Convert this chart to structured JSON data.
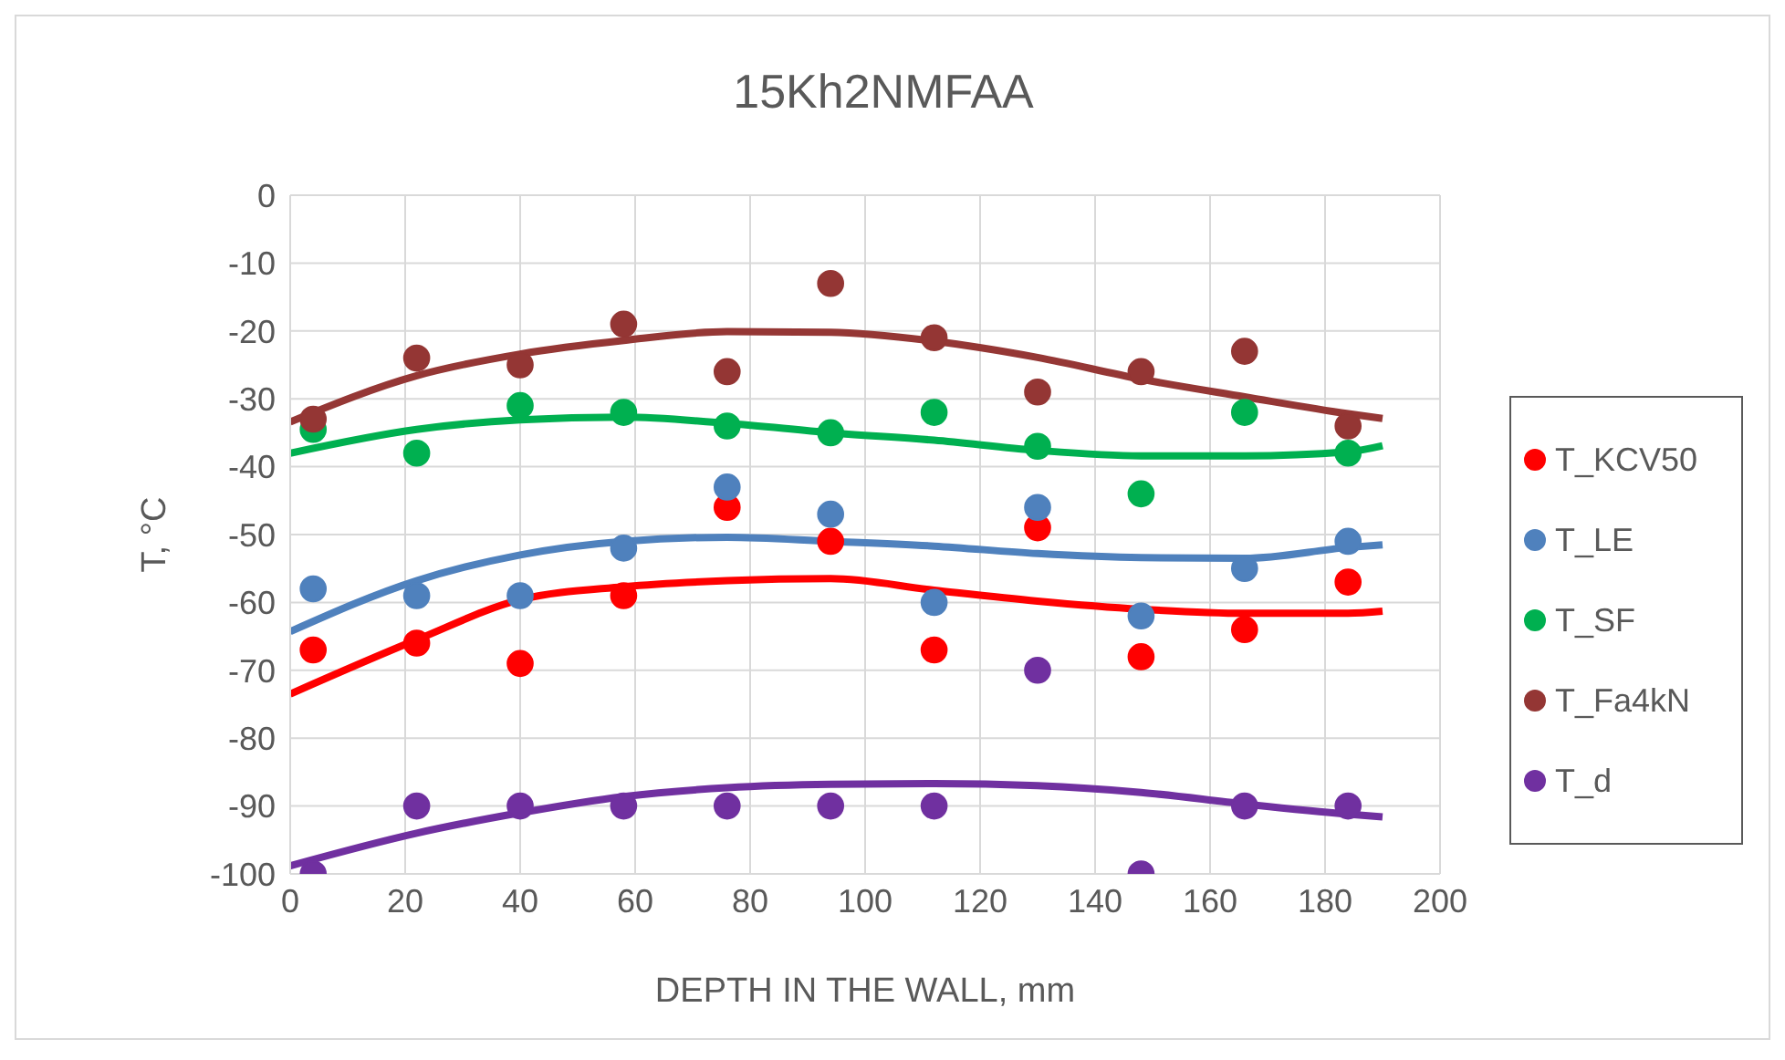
{
  "chart_data": {
    "type": "scatter",
    "title": "15Kh2NMFAA",
    "xlabel": "DEPTH IN THE WALL, mm",
    "ylabel": "T, °C",
    "xlim": [
      0,
      200
    ],
    "xticks": [
      0,
      20,
      40,
      60,
      80,
      100,
      120,
      140,
      160,
      180,
      200
    ],
    "ylim": [
      -100,
      0
    ],
    "yticks": [
      -100,
      -90,
      -80,
      -70,
      -60,
      -50,
      -40,
      -30,
      -20,
      -10,
      0
    ],
    "grid": true,
    "legend": "right",
    "marker": "circle",
    "line_style": "solid",
    "x": [
      4,
      22,
      40,
      58,
      76,
      94,
      112,
      130,
      148,
      166,
      184
    ],
    "series": [
      {
        "type": "line",
        "marker": "none",
        "color": "#ff0000",
        "x": [
          0,
          22,
          40,
          58,
          76,
          94,
          112,
          130,
          148,
          166,
          184,
          190
        ],
        "values": [
          -73.5,
          -65.5,
          -59.6,
          -57.7,
          -56.8,
          -56.5,
          -58.2,
          -59.8,
          -61,
          -61.6,
          -61.6,
          -61.3
        ]
      },
      {
        "type": "line",
        "marker": "none",
        "color": "#4f81bd",
        "x": [
          0,
          22,
          40,
          58,
          76,
          94,
          112,
          130,
          148,
          166,
          184,
          190
        ],
        "values": [
          -64.3,
          -56.8,
          -53,
          -51,
          -50.4,
          -51,
          -51.7,
          -52.8,
          -53.4,
          -53.5,
          -51.9,
          -51.5
        ]
      },
      {
        "type": "line",
        "marker": "none",
        "color": "#00b050",
        "x": [
          0,
          22,
          40,
          58,
          76,
          94,
          112,
          130,
          148,
          166,
          184,
          190
        ],
        "values": [
          -38,
          -34.5,
          -33.1,
          -32.7,
          -33.6,
          -35,
          -36.1,
          -37.6,
          -38.4,
          -38.4,
          -37.8,
          -36.9
        ]
      },
      {
        "type": "line",
        "marker": "none",
        "color": "#953735",
        "x": [
          0,
          22,
          40,
          58,
          76,
          94,
          112,
          130,
          148,
          166,
          184,
          190
        ],
        "values": [
          -33.4,
          -26.6,
          -23.4,
          -21.4,
          -20.1,
          -20.2,
          -21.5,
          -23.9,
          -27.1,
          -29.7,
          -32.2,
          -32.9
        ]
      },
      {
        "type": "line",
        "marker": "none",
        "color": "#7030a0",
        "x": [
          0,
          22,
          40,
          58,
          76,
          94,
          112,
          130,
          148,
          166,
          184,
          190
        ],
        "values": [
          -98.8,
          -94,
          -91,
          -88.6,
          -87.3,
          -86.8,
          -86.7,
          -87,
          -88,
          -89.7,
          -91.2,
          -91.6
        ]
      },
      {
        "name": "T_KCV50",
        "color": "#ff0000",
        "values": [
          -67,
          -66,
          -69,
          -59,
          -46,
          -51,
          -67,
          -49,
          -68,
          -64,
          -57
        ]
      },
      {
        "name": "T_LE",
        "color": "#4f81bd",
        "values": [
          -58,
          -59,
          -59,
          -52,
          -43,
          -47,
          -60,
          -46,
          -62,
          -55,
          -51
        ]
      },
      {
        "name": "T_SF",
        "color": "#00b050",
        "values": [
          -34.5,
          -38,
          -31,
          -32,
          -34,
          -35,
          -32,
          -37,
          -44,
          -32,
          -38
        ]
      },
      {
        "name": "T_Fa4kN",
        "color": "#943634",
        "values": [
          -33,
          -24,
          -25,
          -19,
          -26,
          -13,
          -21,
          -29,
          -26,
          -23,
          -34
        ]
      },
      {
        "name": "T_d",
        "color": "#7030a0",
        "values": [
          -100,
          -90,
          -90,
          -90,
          -90,
          -90,
          -90,
          -70,
          -100,
          -90,
          -90
        ]
      }
    ]
  }
}
